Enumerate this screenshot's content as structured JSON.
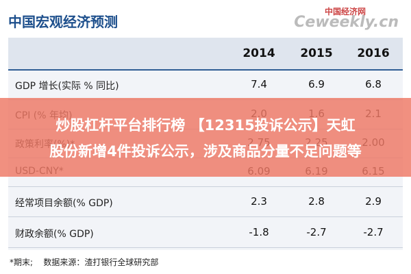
{
  "header": {
    "title": "中国宏观经济预测",
    "watermark": "中国经济网",
    "watermark_site": "Ceweekly.cn"
  },
  "table": {
    "columns": [
      "2014",
      "2015",
      "2016"
    ],
    "rows": [
      [
        "GDP 增长(实际 % 同比)",
        "7.4",
        "6.9",
        "6.8"
      ],
      [
        "CPI (% 年均)",
        "2.0",
        "1.6",
        "2.1"
      ],
      [
        "政策利率(%)*",
        "2.75",
        "2.25",
        "2.00"
      ],
      [
        "USD-CNY*",
        "6.09",
        "6.19",
        "6.15"
      ],
      [
        "经常项目余额(% GDP)",
        "2.3",
        "2.8",
        "2.9"
      ],
      [
        "财政余额(% GDP)",
        "-1.8",
        "-2.7",
        "-2.7"
      ]
    ]
  },
  "footer": {
    "note": "*期末;",
    "source": "数据来源：渣打银行全球研究部"
  },
  "overlay": {
    "line1": "炒股杠杆平台排行榜 【12315投诉公示】天虹",
    "line2": "股份新增4件投诉公示，涉及商品分量不足问题等"
  }
}
